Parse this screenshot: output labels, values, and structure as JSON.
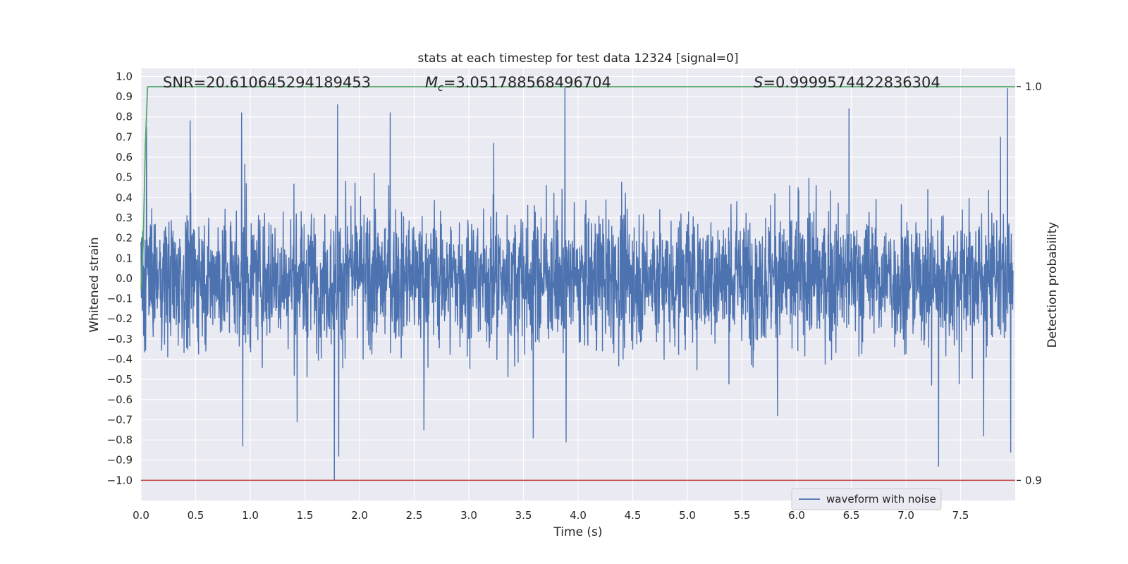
{
  "chart_data": {
    "type": "line",
    "title": "stats at each timestep for test data 12324 [signal=0]",
    "xlabel": "Time (s)",
    "ylabel": "Whitened strain",
    "y2label": "Detection probability",
    "xlim": [
      0.0,
      8.0
    ],
    "ylim": [
      -1.1,
      1.04
    ],
    "y2lim": [
      0.9,
      1.0
    ],
    "xticks": [
      "0.0",
      "0.5",
      "1.0",
      "1.5",
      "2.0",
      "2.5",
      "3.0",
      "3.5",
      "4.0",
      "4.5",
      "5.0",
      "5.5",
      "6.0",
      "6.5",
      "7.0",
      "7.5"
    ],
    "yticks": [
      "1.0",
      "0.9",
      "0.8",
      "0.7",
      "0.6",
      "0.5",
      "0.4",
      "0.3",
      "0.2",
      "0.1",
      "0.0",
      "−0.1",
      "−0.2",
      "−0.3",
      "−0.4",
      "−0.5",
      "−0.6",
      "−0.7",
      "−0.8",
      "−0.9",
      "−1.0"
    ],
    "y2ticks": [
      "1.0",
      "0.9"
    ],
    "grid": true,
    "legend_position": "lower-right",
    "annotations": {
      "snr": "SNR=20.610645294189453",
      "mc_symbol": "M",
      "mc_sub": "c",
      "mc_value": "=3.051788568496704",
      "s_symbol": "S",
      "s_value": "=0.9999574422836304"
    },
    "series": [
      {
        "name": "waveform with noise",
        "color": "#4c72b0",
        "axis": "left",
        "kind": "noise",
        "typical_amplitude": 0.3,
        "max_value": 0.95,
        "min_value": -1.0,
        "spikes": [
          [
            0.05,
            0.75
          ],
          [
            0.45,
            0.78
          ],
          [
            0.92,
            0.82
          ],
          [
            0.93,
            -0.83
          ],
          [
            1.43,
            -0.71
          ],
          [
            1.77,
            -1.0
          ],
          [
            1.8,
            0.86
          ],
          [
            1.81,
            -0.88
          ],
          [
            2.28,
            0.82
          ],
          [
            2.59,
            -0.75
          ],
          [
            3.59,
            -0.79
          ],
          [
            3.88,
            0.95
          ],
          [
            3.89,
            -0.81
          ],
          [
            6.48,
            0.84
          ],
          [
            7.3,
            -0.93
          ],
          [
            7.71,
            -0.78
          ],
          [
            7.93,
            0.94
          ],
          [
            7.96,
            -0.86
          ]
        ]
      },
      {
        "name": "",
        "color": "#55a868",
        "axis": "right",
        "kind": "line",
        "x": [
          0.0,
          0.02,
          0.04,
          0.06,
          0.08,
          8.0
        ],
        "y": [
          0.9485,
          0.96,
          0.985,
          0.9999,
          0.99996,
          0.99996
        ]
      }
    ],
    "hlines": [
      {
        "axis": "right",
        "y": 0.9,
        "color": "#c44e52"
      }
    ]
  }
}
